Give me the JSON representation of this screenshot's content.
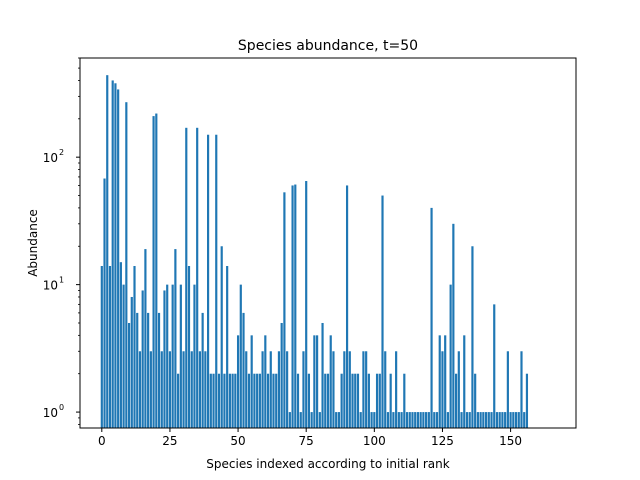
{
  "chart_data": {
    "type": "bar",
    "title": "Species abundance, t=50",
    "xlabel": "Species indexed according to initial rank",
    "ylabel": "Abundance",
    "yscale": "log",
    "xlim": [
      -8,
      174
    ],
    "ylim": [
      0.75,
      600
    ],
    "grid": false,
    "bar_color": "#1f77b4",
    "x_ticks": [
      {
        "value": 0,
        "label": "0"
      },
      {
        "value": 25,
        "label": "25"
      },
      {
        "value": 50,
        "label": "50"
      },
      {
        "value": 75,
        "label": "75"
      },
      {
        "value": 100,
        "label": "100"
      },
      {
        "value": 125,
        "label": "125"
      },
      {
        "value": 150,
        "label": "150"
      }
    ],
    "y_ticks": [
      {
        "value": 1,
        "base": "10",
        "exp": "0"
      },
      {
        "value": 10,
        "base": "10",
        "exp": "1"
      },
      {
        "value": 100,
        "base": "10",
        "exp": "2"
      }
    ],
    "x": [
      0,
      1,
      2,
      3,
      4,
      5,
      6,
      7,
      8,
      9,
      10,
      11,
      12,
      13,
      14,
      15,
      16,
      17,
      18,
      19,
      20,
      21,
      22,
      23,
      24,
      25,
      26,
      27,
      28,
      29,
      30,
      31,
      32,
      33,
      34,
      35,
      36,
      37,
      38,
      39,
      40,
      41,
      42,
      43,
      44,
      45,
      46,
      47,
      48,
      49,
      50,
      51,
      52,
      53,
      54,
      55,
      56,
      57,
      58,
      59,
      60,
      61,
      62,
      63,
      64,
      65,
      66,
      67,
      68,
      69,
      70,
      71,
      72,
      73,
      74,
      75,
      76,
      77,
      78,
      79,
      80,
      81,
      82,
      83,
      84,
      85,
      86,
      87,
      88,
      89,
      90,
      91,
      92,
      93,
      94,
      95,
      96,
      97,
      98,
      99,
      100,
      101,
      102,
      103,
      104,
      105,
      106,
      107,
      108,
      109,
      110,
      111,
      112,
      113,
      114,
      115,
      116,
      117,
      118,
      119,
      120,
      121,
      122,
      123,
      124,
      125,
      126,
      127,
      128,
      129,
      130,
      131,
      132,
      133,
      134,
      135,
      136,
      137,
      138,
      139,
      140,
      141,
      142,
      143,
      144,
      145,
      146,
      147,
      148,
      149,
      150,
      151,
      152,
      153,
      154,
      155,
      156
    ],
    "values": [
      14,
      68,
      440,
      14,
      400,
      380,
      340,
      15,
      10,
      270,
      5,
      8,
      14,
      6,
      3,
      9,
      19,
      6,
      3,
      210,
      220,
      6,
      3,
      9,
      10,
      3,
      10,
      19,
      2,
      10,
      3,
      170,
      14,
      3,
      10,
      170,
      3,
      6,
      3,
      150,
      2,
      2,
      150,
      2,
      20,
      2,
      14,
      2,
      2,
      2,
      4,
      10,
      6,
      3,
      2,
      4,
      2,
      2,
      2,
      3,
      4,
      2,
      3,
      2,
      2,
      3,
      5,
      53,
      3,
      1,
      60,
      61,
      2,
      1,
      3,
      65,
      2,
      1,
      4,
      4,
      1,
      5,
      2,
      2,
      4,
      3,
      1,
      1,
      2,
      3,
      60,
      3,
      2,
      2,
      2,
      1,
      3,
      3,
      2,
      1,
      1,
      2,
      2,
      50,
      3,
      1,
      2,
      1,
      3,
      1,
      1,
      2,
      1,
      1,
      1,
      1,
      1,
      1,
      1,
      1,
      1,
      40,
      1,
      1,
      4,
      3,
      4,
      1,
      10,
      30,
      2,
      3,
      1,
      4,
      1,
      1,
      20,
      2,
      1,
      1,
      1,
      1,
      1,
      1,
      7,
      1,
      1,
      1,
      1,
      3,
      1,
      1,
      1,
      1,
      3,
      1,
      2
    ]
  }
}
